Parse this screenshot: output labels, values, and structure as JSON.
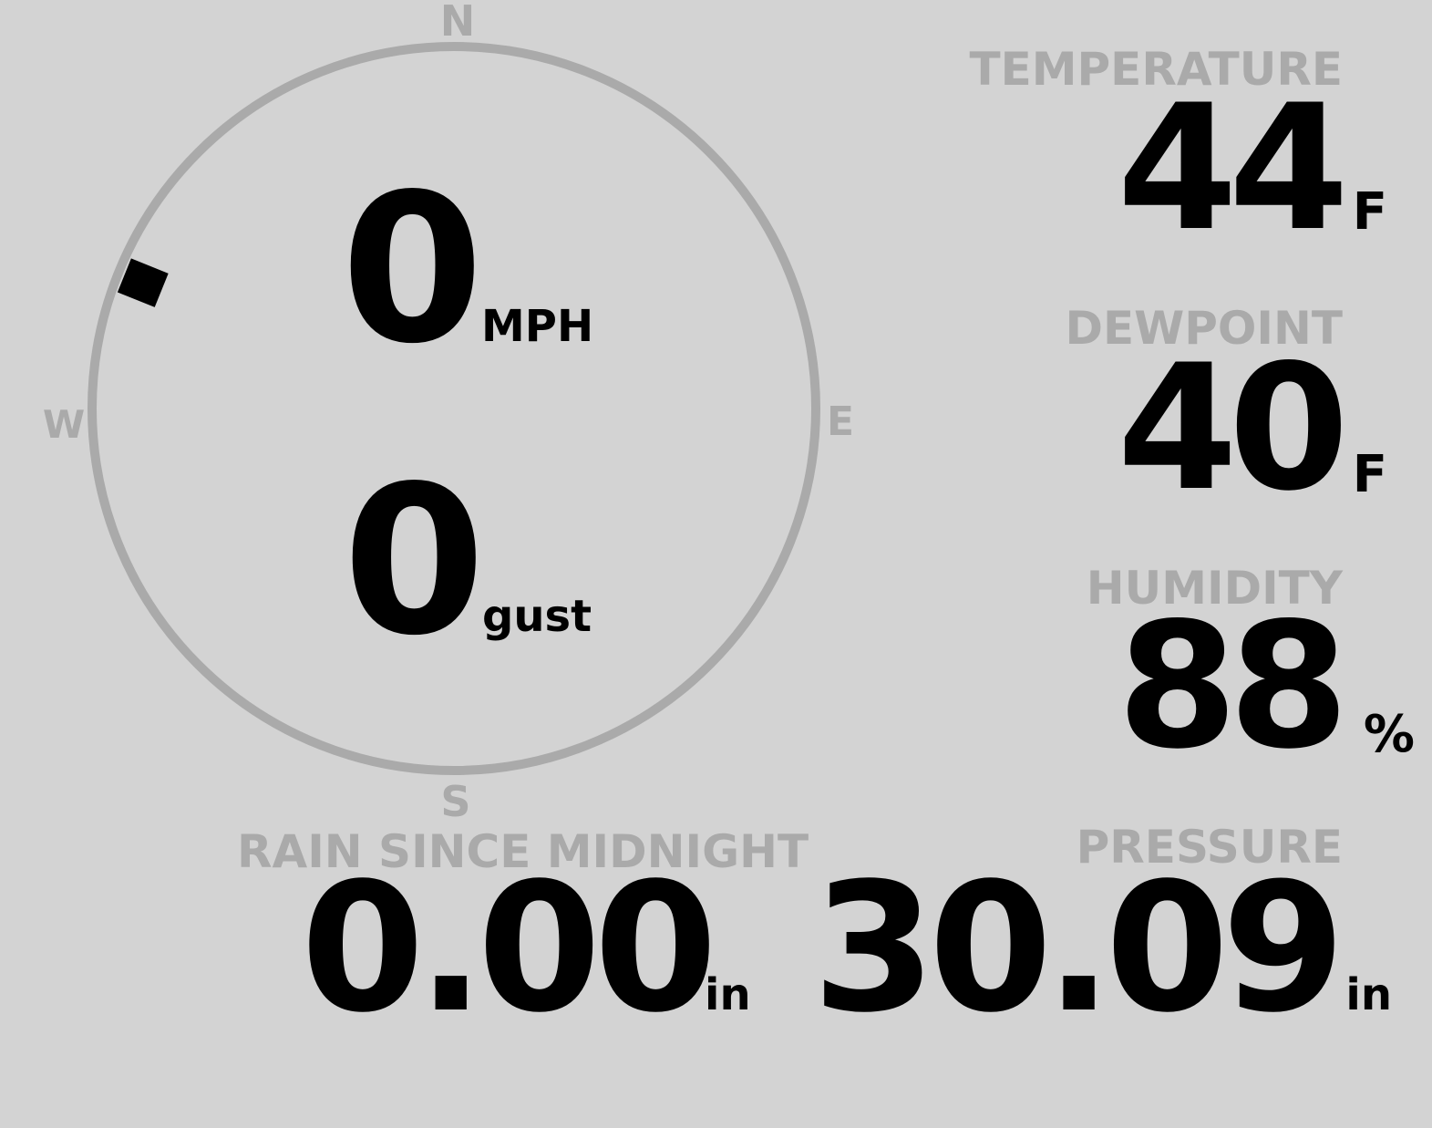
{
  "compass": {
    "north": "N",
    "south": "S",
    "east": "E",
    "west": "W",
    "wind_direction_deg": 292,
    "ring_color": "#aaaaaa"
  },
  "wind": {
    "speed": "0",
    "speed_unit": "MPH",
    "gust": "0",
    "gust_unit": "gust"
  },
  "temperature": {
    "label": "TEMPERATURE",
    "value": "44",
    "unit": "F"
  },
  "dewpoint": {
    "label": "DEWPOINT",
    "value": "40",
    "unit": "F"
  },
  "humidity": {
    "label": "HUMIDITY",
    "value": "88",
    "unit": "%"
  },
  "rain": {
    "label": "RAIN SINCE MIDNIGHT",
    "value": "0.00",
    "unit": "in"
  },
  "pressure": {
    "label": "PRESSURE",
    "value": "30.09",
    "unit": "in"
  },
  "colors": {
    "background": "#d3d3d3",
    "label": "#aaaaaa",
    "value": "#000000"
  }
}
